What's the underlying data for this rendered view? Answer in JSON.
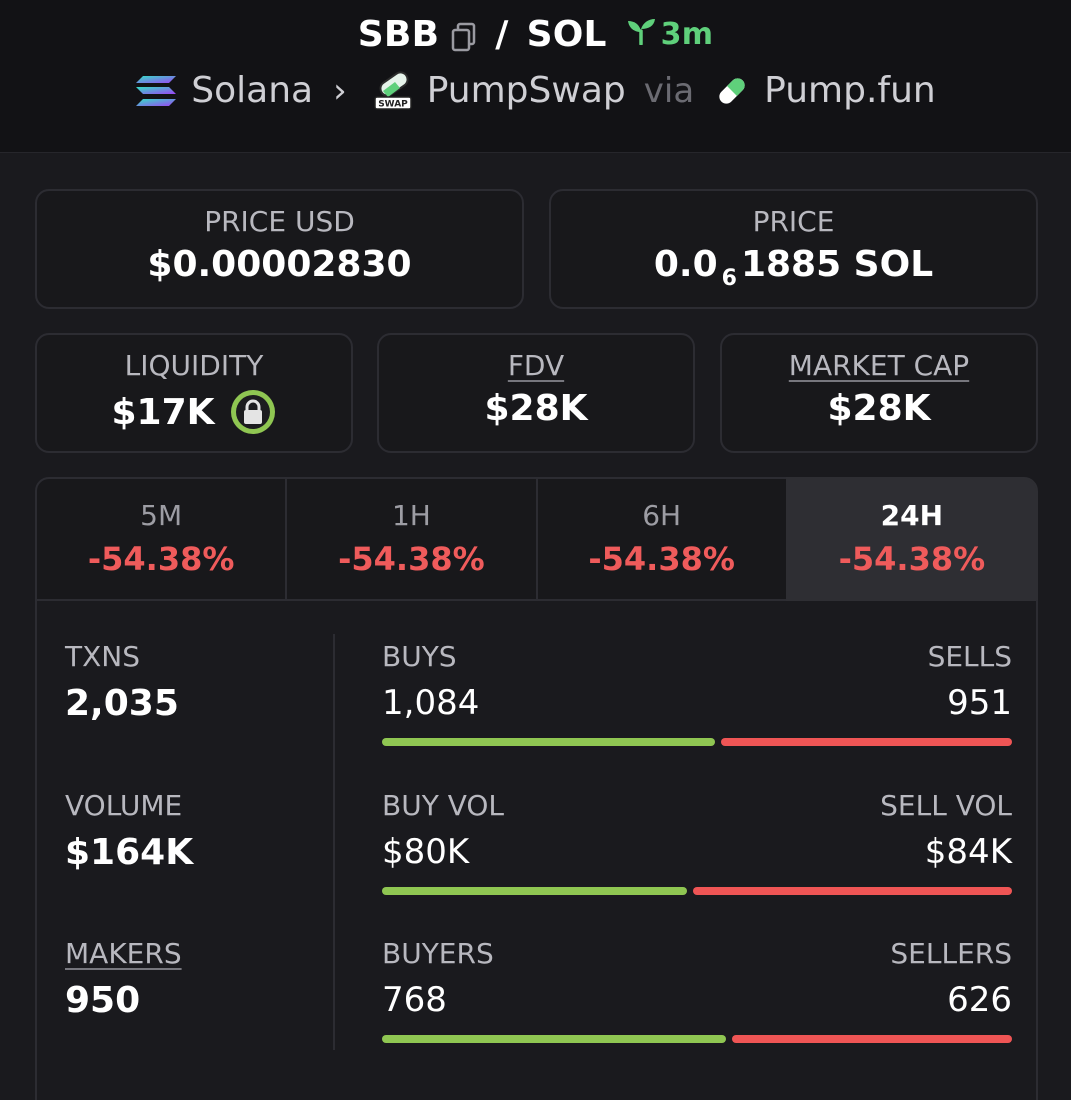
{
  "header": {
    "base_symbol": "SBB",
    "separator": "/",
    "quote_symbol": "SOL",
    "age": "3m",
    "chain": "Solana",
    "dex": "PumpSwap",
    "via": "via",
    "launchpad": "Pump.fun",
    "dex_logo_text": "SWAP"
  },
  "price_usd": {
    "label": "PRICE USD",
    "value": "$0.00002830"
  },
  "price": {
    "label": "PRICE",
    "prefix": "0.0",
    "zeros": "6",
    "suffix": "1885 SOL"
  },
  "liquidity": {
    "label": "LIQUIDITY",
    "value": "$17K"
  },
  "fdv": {
    "label": "FDV",
    "value": "$28K"
  },
  "market_cap": {
    "label": "MARKET CAP",
    "value": "$28K"
  },
  "tabs": [
    {
      "label": "5M",
      "change": "-54.38%"
    },
    {
      "label": "1H",
      "change": "-54.38%"
    },
    {
      "label": "6H",
      "change": "-54.38%"
    },
    {
      "label": "24H",
      "change": "-54.38%",
      "active": true
    }
  ],
  "stats": {
    "txns": {
      "label": "TXNS",
      "value": "2,035"
    },
    "volume": {
      "label": "VOLUME",
      "value": "$164K"
    },
    "makers": {
      "label": "MAKERS",
      "value": "950"
    },
    "buys": {
      "label": "BUYS",
      "value": "1,084"
    },
    "sells": {
      "label": "SELLS",
      "value": "951"
    },
    "buy_vol": {
      "label": "BUY VOL",
      "value": "$80K"
    },
    "sell_vol": {
      "label": "SELL VOL",
      "value": "$84K"
    },
    "buyers": {
      "label": "BUYERS",
      "value": "768"
    },
    "sellers": {
      "label": "SELLERS",
      "value": "626"
    }
  },
  "ratios": {
    "buys": 0.533,
    "buy_vol": 0.488,
    "buyers": 0.551
  },
  "colors": {
    "up": "#8fc652",
    "down": "#ef5555",
    "age": "#5fd07b"
  }
}
